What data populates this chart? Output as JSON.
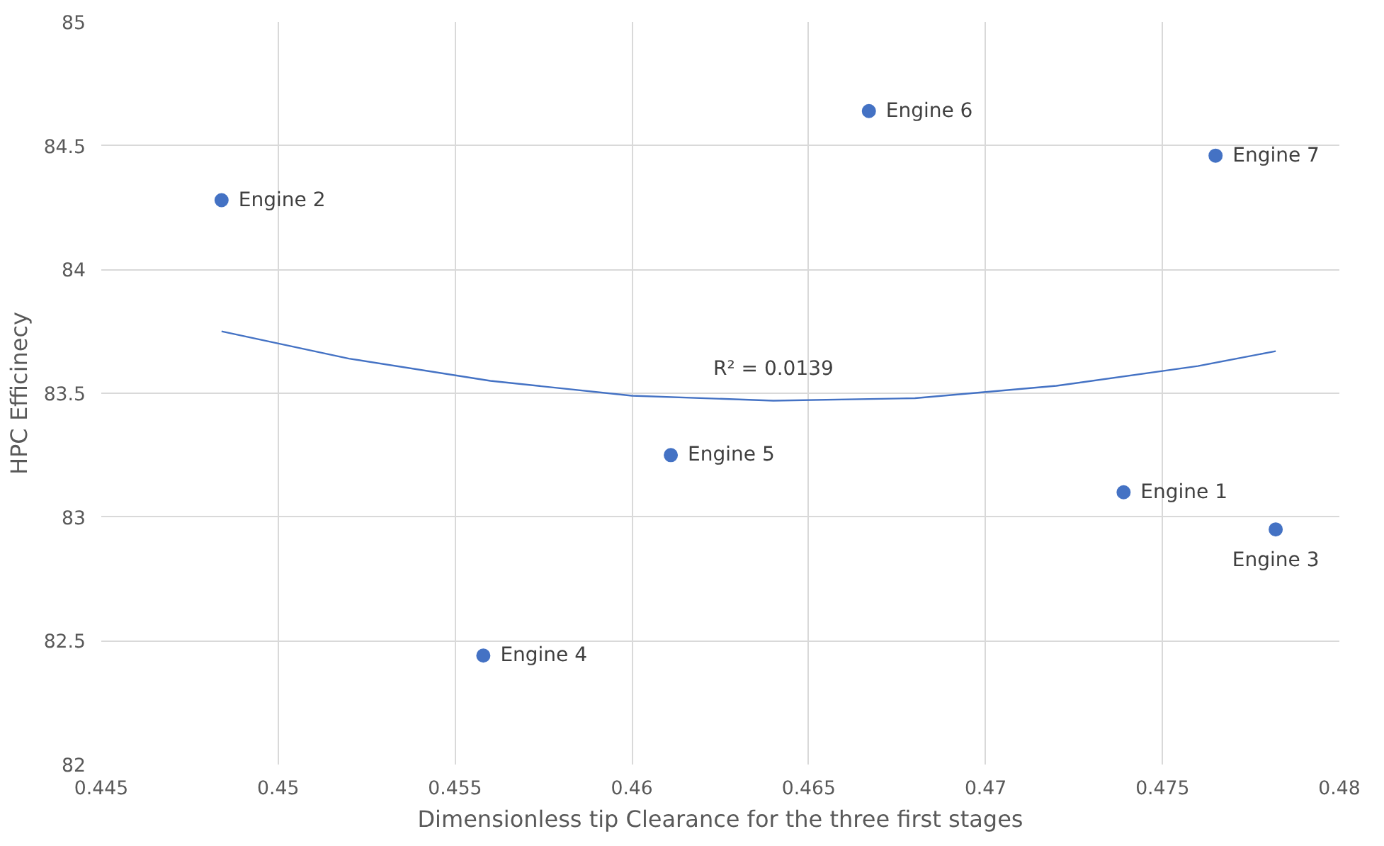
{
  "chart_data": {
    "type": "scatter",
    "xlabel": "Dimensionless tip Clearance for the three first stages",
    "ylabel": "HPC Efficinecy",
    "xlim": [
      0.445,
      0.48
    ],
    "xticks": [
      0.445,
      0.45,
      0.455,
      0.46,
      0.465,
      0.47,
      0.475,
      0.48
    ],
    "ylim": [
      82,
      85
    ],
    "yticks": [
      82,
      82.5,
      83,
      83.5,
      84,
      84.5,
      85
    ],
    "grid": true,
    "series": [
      {
        "color": "#4472c4",
        "marker": "circle",
        "x": [
          0.4739,
          0.4484,
          0.4782,
          0.4558,
          0.4611,
          0.4667,
          0.4765
        ],
        "values": [
          83.1,
          84.28,
          82.95,
          82.44,
          83.25,
          84.64,
          84.46
        ]
      },
      {
        "type": "line",
        "color": "#4472c4",
        "line_style": "solid",
        "x": [
          0.4484,
          0.452,
          0.456,
          0.46,
          0.464,
          0.468,
          0.472,
          0.476,
          0.4782
        ],
        "values": [
          83.75,
          83.64,
          83.55,
          83.49,
          83.47,
          83.48,
          83.53,
          83.61,
          83.67
        ]
      }
    ],
    "annotations": [
      {
        "text": "Engine 1",
        "x": 0.4739,
        "y": 83.1
      },
      {
        "text": "Engine 2",
        "x": 0.4484,
        "y": 84.28
      },
      {
        "text": "Engine 3",
        "x": 0.4782,
        "y": 82.95
      },
      {
        "text": "Engine 4",
        "x": 0.4558,
        "y": 82.44
      },
      {
        "text": "Engine 5",
        "x": 0.4611,
        "y": 83.25
      },
      {
        "text": "Engine 6",
        "x": 0.4667,
        "y": 84.64
      },
      {
        "text": "Engine 7",
        "x": 0.4765,
        "y": 84.46
      },
      {
        "text": "R² = 0.0139",
        "x": 0.464,
        "y": 83.47
      }
    ]
  }
}
